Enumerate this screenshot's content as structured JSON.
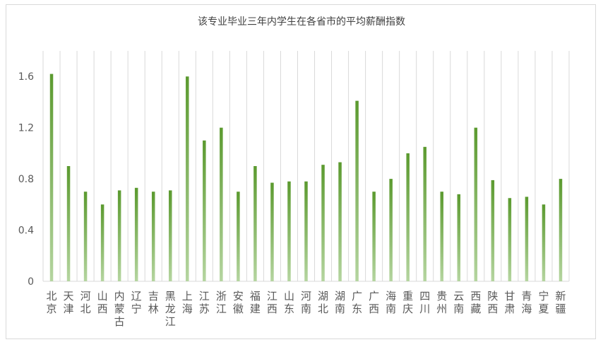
{
  "chart_data": {
    "type": "bar",
    "title": "该专业毕业三年内学生在各省市的平均薪酬指数",
    "xlabel": "",
    "ylabel": "",
    "ylim": [
      0,
      1.8
    ],
    "yticks": [
      "0",
      "0.4",
      "0.8",
      "1.2",
      "1.6"
    ],
    "grid": "vertical",
    "legend": "none",
    "colors": {
      "bar_top": "#5b9a2f",
      "bar_bottom": "#b5d5a0",
      "grid": "#d9d9d9",
      "text": "#595959"
    },
    "categories": [
      "北京",
      "天津",
      "河北",
      "山西",
      "内蒙古",
      "辽宁",
      "吉林",
      "黑龙江",
      "上海",
      "江苏",
      "浙江",
      "安徽",
      "福建",
      "江西",
      "山东",
      "河南",
      "湖北",
      "湖南",
      "广东",
      "广西",
      "海南",
      "重庆",
      "四川",
      "贵州",
      "云南",
      "西藏",
      "陕西",
      "甘肃",
      "青海",
      "宁夏",
      "新疆"
    ],
    "values": [
      1.62,
      0.9,
      0.7,
      0.6,
      0.71,
      0.73,
      0.7,
      0.71,
      1.6,
      1.1,
      1.2,
      0.7,
      0.9,
      0.77,
      0.78,
      0.78,
      0.91,
      0.93,
      1.41,
      0.7,
      0.8,
      1.0,
      1.05,
      0.7,
      0.68,
      1.2,
      0.79,
      0.65,
      0.66,
      0.6,
      0.8
    ]
  }
}
